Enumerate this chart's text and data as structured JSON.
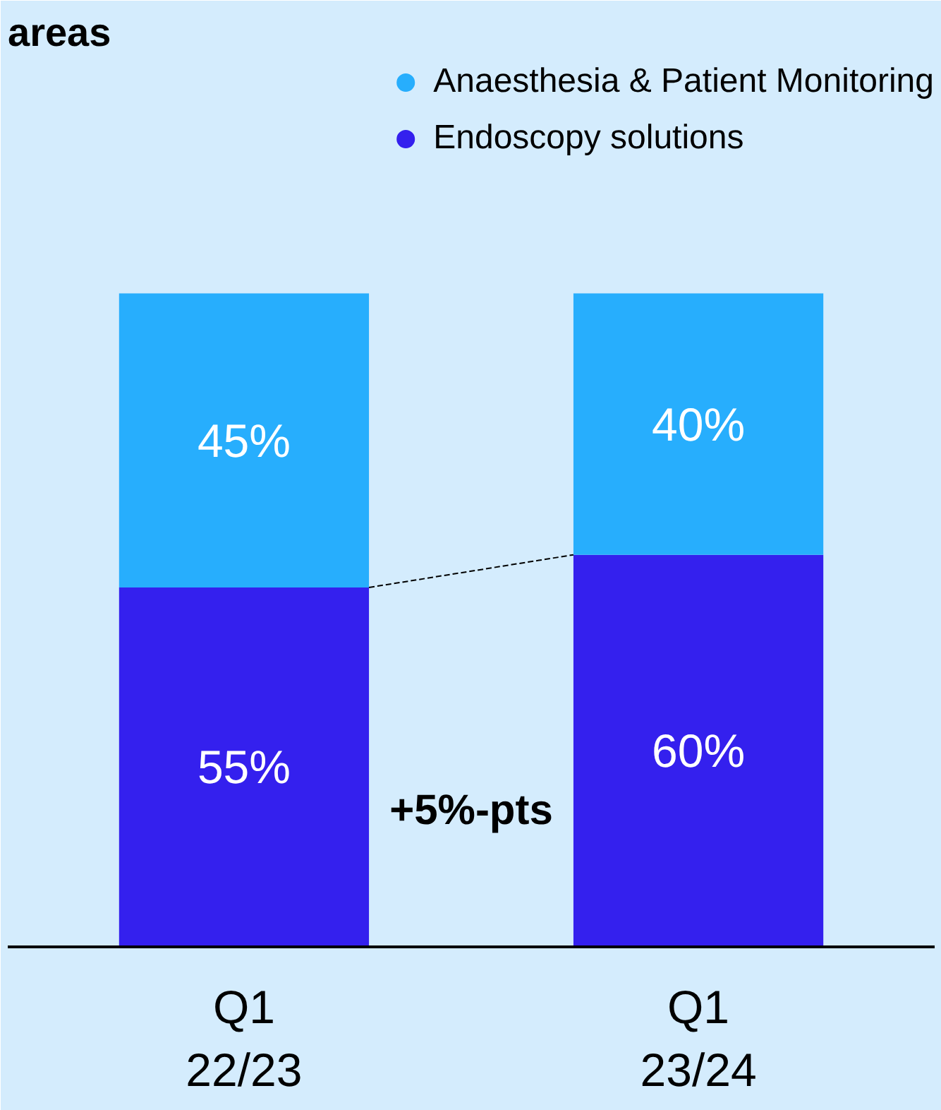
{
  "chart_data": {
    "type": "bar",
    "title": "areas",
    "stacked": true,
    "categories": [
      "Q1\n22/23",
      "Q1\n23/24"
    ],
    "series": [
      {
        "name": "Endoscopy solutions",
        "color": "#3420ee",
        "values": [
          55,
          60
        ],
        "value_labels": [
          "55%",
          "60%"
        ]
      },
      {
        "name": "Anaesthesia & Patient Monitoring",
        "color": "#27aefd",
        "values": [
          45,
          40
        ],
        "value_labels": [
          "45%",
          "40%"
        ]
      }
    ],
    "legend": "top right",
    "grid": false,
    "annotations": [
      "+5%-pts"
    ]
  }
}
